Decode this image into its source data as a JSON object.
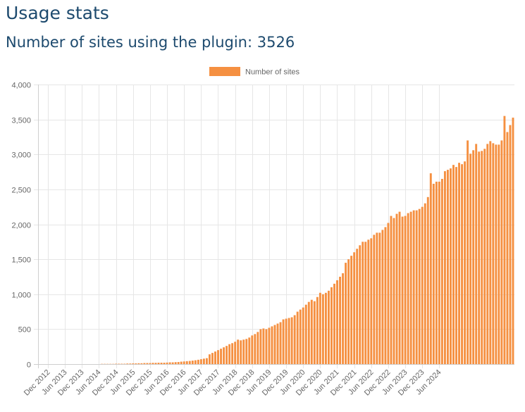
{
  "page": {
    "title": "Usage stats",
    "subtitle_prefix": "Number of sites using the plugin: ",
    "subtitle_count": "3526"
  },
  "chart_data": {
    "type": "bar",
    "title": "",
    "xlabel": "",
    "ylabel": "",
    "color": "#f59041",
    "legend": {
      "label": "Number of sites",
      "position": "top"
    },
    "grid": true,
    "ylim": [
      0,
      4000
    ],
    "y_ticks": [
      0,
      500,
      1000,
      1500,
      2000,
      2500,
      3000,
      3500,
      4000
    ],
    "y_tick_labels": [
      "0",
      "500",
      "1,000",
      "1,500",
      "2,000",
      "2,500",
      "3,000",
      "3,500",
      "4,000"
    ],
    "x_tick_labels": [
      "Dec 2012",
      "Jun 2013",
      "Dec 2013",
      "Jun 2014",
      "Dec 2014",
      "Jun 2015",
      "Dec 2015",
      "Jun 2016",
      "Dec 2016",
      "Jun 2017",
      "Dec 2017",
      "Jun 2018",
      "Dec 2018",
      "Jun 2019",
      "Dec 2019",
      "Jun 2020",
      "Dec 2020",
      "Jun 2021",
      "Dec 2021",
      "Jun 2022",
      "Dec 2022",
      "Jun 2023",
      "Dec 2023",
      "Jun 2024"
    ],
    "x_tick_every": 6,
    "series": [
      {
        "name": "Number of sites",
        "values": [
          0,
          0,
          0,
          0,
          0,
          0,
          0,
          0,
          0,
          0,
          0,
          0,
          0,
          0,
          0,
          0,
          0,
          0,
          0,
          0,
          0,
          0,
          3,
          3,
          3,
          3,
          3,
          5,
          5,
          5,
          5,
          8,
          8,
          10,
          10,
          12,
          12,
          15,
          15,
          15,
          18,
          18,
          20,
          20,
          20,
          22,
          25,
          25,
          28,
          30,
          35,
          38,
          42,
          45,
          50,
          55,
          62,
          70,
          78,
          85,
          140,
          160,
          180,
          200,
          220,
          240,
          260,
          285,
          300,
          320,
          350,
          340,
          350,
          360,
          380,
          410,
          430,
          460,
          500,
          510,
          500,
          520,
          540,
          560,
          580,
          600,
          640,
          650,
          660,
          670,
          700,
          750,
          780,
          810,
          850,
          890,
          920,
          900,
          960,
          1020,
          1000,
          1020,
          1050,
          1100,
          1150,
          1200,
          1250,
          1300,
          1450,
          1500,
          1550,
          1600,
          1650,
          1700,
          1750,
          1750,
          1780,
          1800,
          1850,
          1880,
          1880,
          1920,
          1960,
          2020,
          2120,
          2090,
          2150,
          2180,
          2110,
          2120,
          2160,
          2180,
          2200,
          2200,
          2220,
          2250,
          2300,
          2390,
          2730,
          2580,
          2610,
          2610,
          2650,
          2760,
          2780,
          2800,
          2850,
          2820,
          2880,
          2860,
          2900,
          3200,
          3010,
          3060,
          3150,
          3040,
          3050,
          3080,
          3150,
          3190,
          3160,
          3140,
          3140,
          3200,
          3550,
          3320,
          3420,
          3526
        ]
      }
    ]
  }
}
